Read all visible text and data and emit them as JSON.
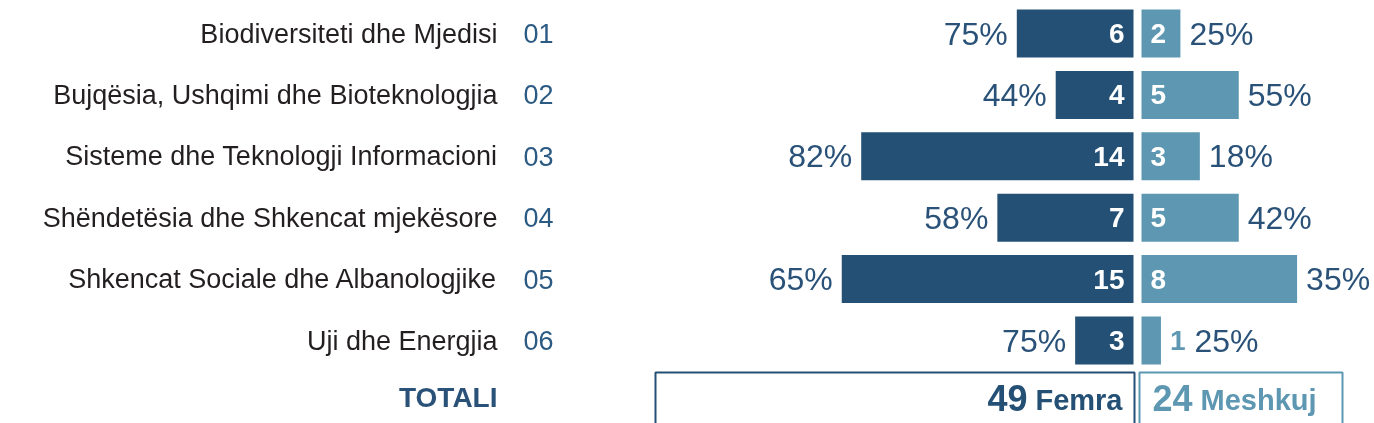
{
  "chart_data": [
    {
      "type": "bar",
      "orientation": "horizontal",
      "categories": [
        "Biodiversiteti dhe Mjedisi",
        "Bujqësia, Ushqimi dhe Bioteknologjia",
        "Sisteme dhe Teknologji Informacioni",
        "Shëndetësia dhe Shkencat mjekësore",
        "Shkencat Sociale dhe Albanologjike",
        "Uji dhe Energjia"
      ],
      "y2_categories": [
        "01",
        "02",
        "03",
        "04",
        "05",
        "06"
      ],
      "series": [
        {
          "name": "Femra",
          "color": "#245075",
          "values": [
            6,
            4,
            14,
            7,
            15,
            3
          ]
        }
      ],
      "data_labels": true,
      "annotations": [
        {
          "text": "75%",
          "x": 6,
          "y": "Biodiversiteti dhe Mjedisi"
        },
        {
          "text": "44%",
          "x": 4,
          "y": "Bujqësia, Ushqimi dhe Bioteknologjia"
        },
        {
          "text": "82%",
          "x": 14,
          "y": "Sisteme dhe Teknologji Informacioni"
        },
        {
          "text": "58%",
          "x": 7,
          "y": "Shëndetësia dhe Shkencat mjekësore"
        },
        {
          "text": "65%",
          "x": 15,
          "y": "Shkencat Sociale dhe Albanologjike"
        },
        {
          "text": "75%",
          "x": 3,
          "y": "Uji dhe Energjia"
        },
        "49"
      ],
      "legend": "bottom",
      "legend_title": "TOTALI",
      "tick_labels": "y"
    },
    {
      "type": "bar",
      "orientation": "horizontal",
      "categories": [
        "Biodiversiteti dhe Mjedisi",
        "Bujqësia, Ushqimi dhe Bioteknologjia",
        "Sisteme dhe Teknologji Informacioni",
        "Shëndetësia dhe Shkencat mjekësore",
        "Shkencat Sociale dhe Albanologjike",
        "Uji dhe Energjia"
      ],
      "series": [
        {
          "name": "Meshkuj",
          "color": "#5d97b2",
          "values": [
            2,
            5,
            3,
            5,
            8,
            1
          ]
        }
      ],
      "data_labels": true,
      "annotations": [
        {
          "text": "25%",
          "x": 2,
          "y": "Biodiversiteti dhe Mjedisi"
        },
        {
          "text": "55%",
          "x": 5,
          "y": "Bujqësia, Ushqimi dhe Bioteknologjia"
        },
        {
          "text": "18%",
          "x": 3,
          "y": "Sisteme dhe Teknologji Informacioni"
        },
        {
          "text": "42%",
          "x": 5,
          "y": "Shëndetësia dhe Shkencat mjekësore"
        },
        {
          "text": "35%",
          "x": 8,
          "y": "Shkencat Sociale dhe Albanologjike"
        },
        {
          "text": "25%",
          "x": 1,
          "y": "Uji dhe Energjia"
        },
        "24"
      ],
      "legend": "bottom",
      "tick_labels": false
    }
  ]
}
